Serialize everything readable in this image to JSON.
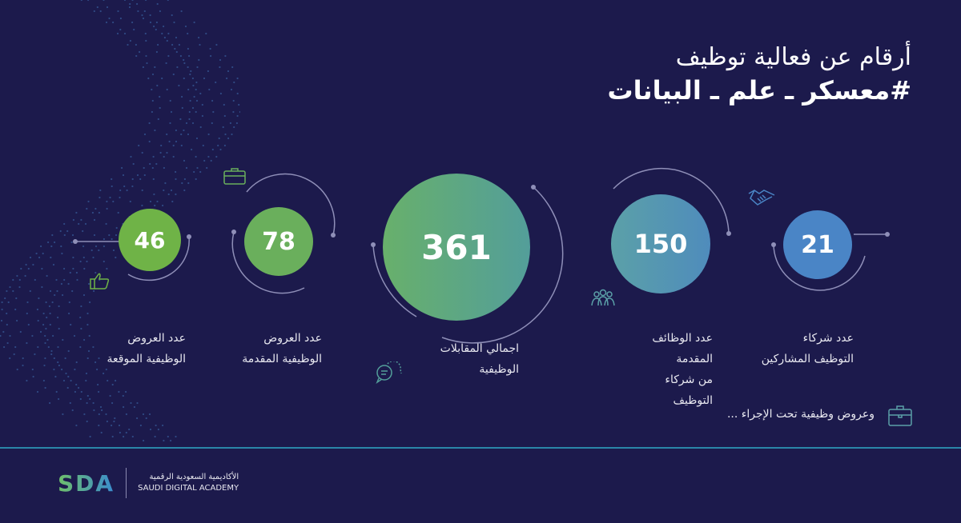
{
  "title": {
    "line1": "أرقام عن فعالية توظيف",
    "line2": "#معسكر ـ علم ـ البيانات"
  },
  "stats": [
    {
      "value": "46",
      "label_line1": "عدد العروض",
      "label_line2": "الوظيفية الموقعة",
      "icon": "thumbs-up-icon"
    },
    {
      "value": "78",
      "label_line1": "عدد العروض",
      "label_line2": "الوظيفية المقدمة",
      "icon": "briefcase-icon"
    },
    {
      "value": "361",
      "label_line1": "اجمالي المقابلات الوظيفية",
      "label_line2": "",
      "icon": "chat-bubbles-icon"
    },
    {
      "value": "150",
      "label_line1": "عدد الوظائف المقدمة",
      "label_line2": "من شركاء التوظيف",
      "icon": "people-group-icon"
    },
    {
      "value": "21",
      "label_line1": "عدد شركاء",
      "label_line2": "التوظيف المشاركين",
      "icon": "handshake-icon"
    }
  ],
  "pending_note": "وعروض وظيفية تحت الإجراء ...",
  "footer": {
    "logo_mark": "SDA",
    "name_ar": "الأكاديمية السعودية الرقمية",
    "name_en": "SAUDI DIGITAL ACADEMY"
  },
  "colors": {
    "background": "#1c1a4c",
    "green": "#6fb347",
    "teal": "#539e9a",
    "blue": "#4a85c6",
    "divider": "#2a86a8"
  }
}
